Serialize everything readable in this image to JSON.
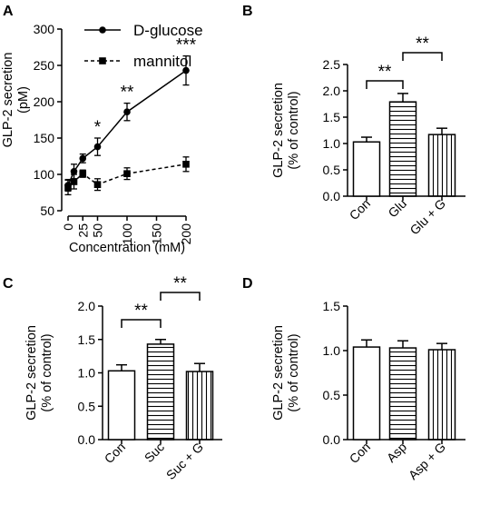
{
  "figure": {
    "panels": [
      "A",
      "B",
      "C",
      "D"
    ]
  },
  "chart_data": [
    {
      "panel": "A",
      "type": "line",
      "xlabel": "Concentration (mM)",
      "ylabel": "GLP-2 secretion\n(pM)",
      "xlim": [
        0,
        200
      ],
      "ylim": [
        50,
        300
      ],
      "xticks": [
        0,
        25,
        50,
        100,
        150,
        200
      ],
      "yticks": [
        50,
        100,
        150,
        200,
        250,
        300
      ],
      "legend_position": "top-left",
      "series": [
        {
          "name": "D-glucose",
          "marker": "circle",
          "line": "solid",
          "x": [
            0,
            10,
            25,
            50,
            100,
            200
          ],
          "y": [
            85,
            104,
            122,
            138,
            186,
            243
          ],
          "err": [
            8,
            10,
            6,
            12,
            12,
            20
          ],
          "significance": [
            "",
            "",
            "",
            "*",
            "**",
            "***"
          ]
        },
        {
          "name": "mannitol",
          "marker": "square",
          "line": "dashed",
          "x": [
            0,
            10,
            25,
            50,
            100,
            200
          ],
          "y": [
            82,
            90,
            101,
            86,
            101,
            114
          ],
          "err": [
            10,
            10,
            5,
            8,
            8,
            10
          ]
        }
      ]
    },
    {
      "panel": "B",
      "type": "bar",
      "ylabel": "GLP-2 secretion\n(% of control)",
      "ylim": [
        0,
        2.5
      ],
      "yticks": [
        "0.0",
        "0.5",
        "1.0",
        "1.5",
        "2.0",
        "2.5"
      ],
      "categories": [
        "Con",
        "Glu",
        "Glu + G"
      ],
      "values": [
        1.03,
        1.79,
        1.17
      ],
      "err": [
        0.09,
        0.16,
        0.12
      ],
      "fill_patterns": [
        "none",
        "horizontal",
        "vertical"
      ],
      "comparisons": [
        {
          "from": 0,
          "to": 1,
          "label": "**"
        },
        {
          "from": 1,
          "to": 2,
          "label": "**"
        }
      ]
    },
    {
      "panel": "C",
      "type": "bar",
      "ylabel": "GLP-2 secretion\n(% of control)",
      "ylim": [
        0,
        2.0
      ],
      "yticks": [
        "0.0",
        "0.5",
        "1.0",
        "1.5",
        "2.0"
      ],
      "categories": [
        "Con",
        "Suc",
        "Suc + G"
      ],
      "values": [
        1.03,
        1.43,
        1.02
      ],
      "err": [
        0.09,
        0.07,
        0.12
      ],
      "fill_patterns": [
        "none",
        "horizontal",
        "vertical"
      ],
      "comparisons": [
        {
          "from": 0,
          "to": 1,
          "label": "**"
        },
        {
          "from": 1,
          "to": 2,
          "label": "**"
        }
      ]
    },
    {
      "panel": "D",
      "type": "bar",
      "ylabel": "GLP-2 secretion\n(% of control)",
      "ylim": [
        0,
        1.5
      ],
      "yticks": [
        "0.0",
        "0.5",
        "1.0",
        "1.5"
      ],
      "categories": [
        "Con",
        "Asp",
        "Asp + G"
      ],
      "values": [
        1.04,
        1.03,
        1.01
      ],
      "err": [
        0.08,
        0.08,
        0.07
      ],
      "fill_patterns": [
        "none",
        "horizontal",
        "vertical"
      ],
      "comparisons": []
    }
  ]
}
